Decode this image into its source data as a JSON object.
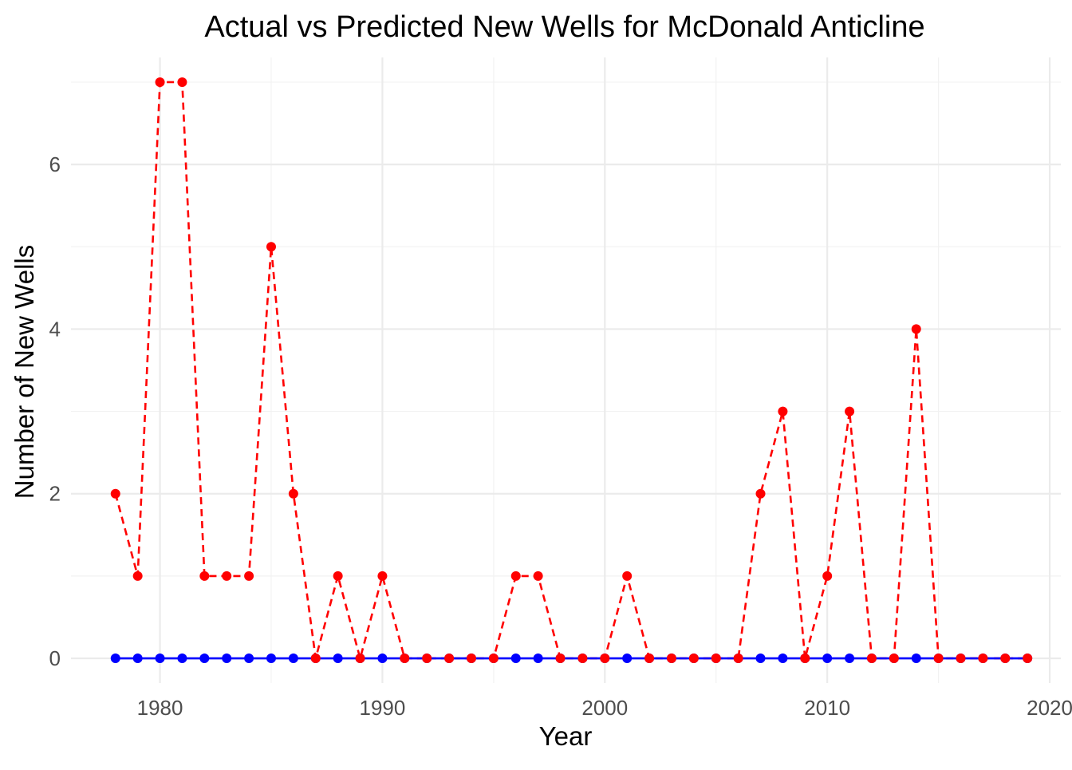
{
  "chart_data": {
    "type": "line",
    "title": "Actual vs Predicted New Wells for McDonald Anticline",
    "xlabel": "Year",
    "ylabel": "Number of New Wells",
    "xlim": [
      1976,
      2020.5
    ],
    "ylim": [
      -0.3,
      7.3
    ],
    "xticks": [
      1980,
      1990,
      2000,
      2010,
      2020
    ],
    "yticks": [
      0,
      2,
      4,
      6
    ],
    "grid": true,
    "legend": "none",
    "x": [
      1978,
      1979,
      1980,
      1981,
      1982,
      1983,
      1984,
      1985,
      1986,
      1987,
      1988,
      1989,
      1990,
      1991,
      1992,
      1993,
      1994,
      1995,
      1996,
      1997,
      1998,
      1999,
      2000,
      2001,
      2002,
      2003,
      2004,
      2005,
      2006,
      2007,
      2008,
      2009,
      2010,
      2011,
      2012,
      2013,
      2014,
      2015,
      2016,
      2017,
      2018,
      2019
    ],
    "series": [
      {
        "color": "#ff0000",
        "line_style": "dashed",
        "values": [
          2,
          1,
          7,
          7,
          1,
          1,
          1,
          5,
          2,
          0,
          1,
          0,
          1,
          0,
          0,
          0,
          0,
          0,
          1,
          1,
          0,
          0,
          0,
          1,
          0,
          0,
          0,
          0,
          0,
          2,
          3,
          0,
          1,
          3,
          0,
          0,
          4,
          0,
          0,
          0,
          0,
          0
        ]
      },
      {
        "color": "#0000ff",
        "line_style": "solid",
        "values": [
          0,
          0,
          0,
          0,
          0,
          0,
          0,
          0,
          0,
          0,
          0,
          0,
          0,
          0,
          0,
          0,
          0,
          0,
          0,
          0,
          0,
          0,
          0,
          0,
          0,
          0,
          0,
          0,
          0,
          0,
          0,
          0,
          0,
          0,
          0,
          0,
          0,
          0,
          0,
          0,
          0,
          0
        ]
      }
    ]
  }
}
